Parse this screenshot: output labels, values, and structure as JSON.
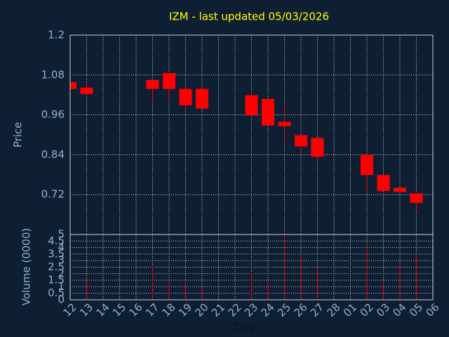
{
  "chart_data": {
    "type": "candlestick",
    "title": "IZM - last updated 05/03/2026",
    "ylabel": "Price",
    "xlabel": "Day",
    "categories": [
      "12",
      "13",
      "14",
      "15",
      "16",
      "17",
      "18",
      "19",
      "20",
      "21",
      "22",
      "23",
      "24",
      "25",
      "26",
      "27",
      "28",
      "01",
      "02",
      "03",
      "04",
      "05",
      "06"
    ],
    "open": [
      1.059,
      1.042,
      null,
      null,
      null,
      1.065,
      1.086,
      1.038,
      1.038,
      null,
      null,
      1.019,
      1.008,
      0.939,
      0.899,
      0.891,
      null,
      null,
      0.84,
      0.779,
      0.741,
      0.724,
      null
    ],
    "high": [
      1.059,
      1.059,
      null,
      null,
      null,
      1.065,
      1.086,
      1.038,
      1.038,
      null,
      null,
      1.029,
      1.008,
      0.994,
      0.899,
      0.891,
      null,
      null,
      0.84,
      0.779,
      0.741,
      0.724,
      null
    ],
    "low": [
      1.038,
      1.023,
      null,
      null,
      null,
      0.996,
      1.004,
      0.977,
      0.979,
      null,
      null,
      0.958,
      0.928,
      0.876,
      0.84,
      0.819,
      null,
      null,
      0.728,
      0.731,
      0.726,
      0.669,
      null
    ],
    "close": [
      1.038,
      1.023,
      null,
      null,
      null,
      1.038,
      1.038,
      0.989,
      0.979,
      null,
      null,
      0.958,
      0.928,
      0.926,
      0.865,
      0.834,
      null,
      null,
      0.779,
      0.731,
      0.728,
      0.695,
      null
    ],
    "color": "#ff0000",
    "ylim": [
      0.6,
      1.2
    ],
    "yticks": [
      0.72,
      0.84,
      0.96,
      1.08,
      1.2
    ],
    "grid": true,
    "volume": {
      "label": "Volume (0000)",
      "color": "#ff0000",
      "values": [
        0,
        1.7,
        null,
        null,
        null,
        2.6,
        1.45,
        1.4,
        1.0,
        null,
        null,
        2.0,
        1.5,
        5.0,
        3.5,
        2.4,
        null,
        null,
        4.1,
        1.45,
        2.7,
        3.5,
        null
      ],
      "ylim": [
        0,
        5
      ],
      "yticks": [
        0,
        0.5,
        1,
        1.5,
        2,
        2.5,
        3,
        3.5,
        4,
        4.5,
        5
      ]
    }
  }
}
